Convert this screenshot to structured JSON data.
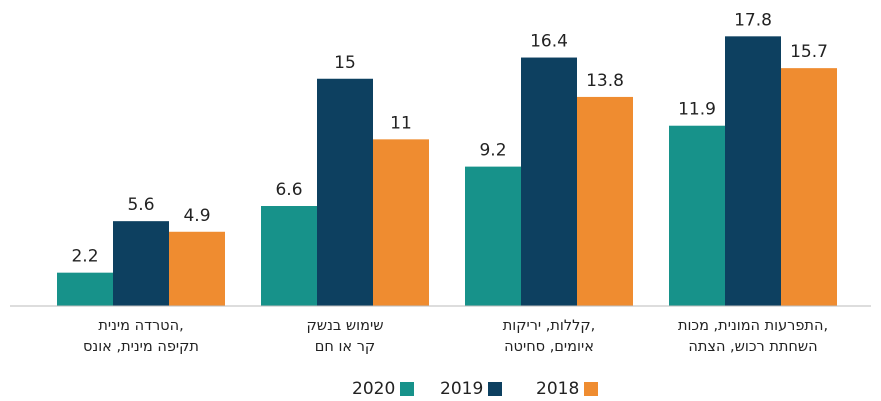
{
  "chart_data": {
    "type": "bar",
    "categories": [
      [
        "הטרדה מינית,",
        "תקיפה מינית, אונס"
      ],
      [
        "שימוש בנשק",
        "קר או חם"
      ],
      [
        "קללות, יריקות,",
        "איומים, סחיטה"
      ],
      [
        "התפרעות המונית, מכות,",
        "השחתת רכוש, הצתה"
      ]
    ],
    "series": [
      {
        "name": "2020",
        "color": "#17928a",
        "values": [
          2.2,
          6.6,
          9.2,
          11.9
        ]
      },
      {
        "name": "2019",
        "color": "#0d4060",
        "values": [
          5.6,
          15,
          16.4,
          17.8
        ]
      },
      {
        "name": "2018",
        "color": "#ef8c30",
        "values": [
          4.9,
          11,
          13.8,
          15.7
        ]
      }
    ],
    "ylim": [
      0,
      20
    ]
  }
}
